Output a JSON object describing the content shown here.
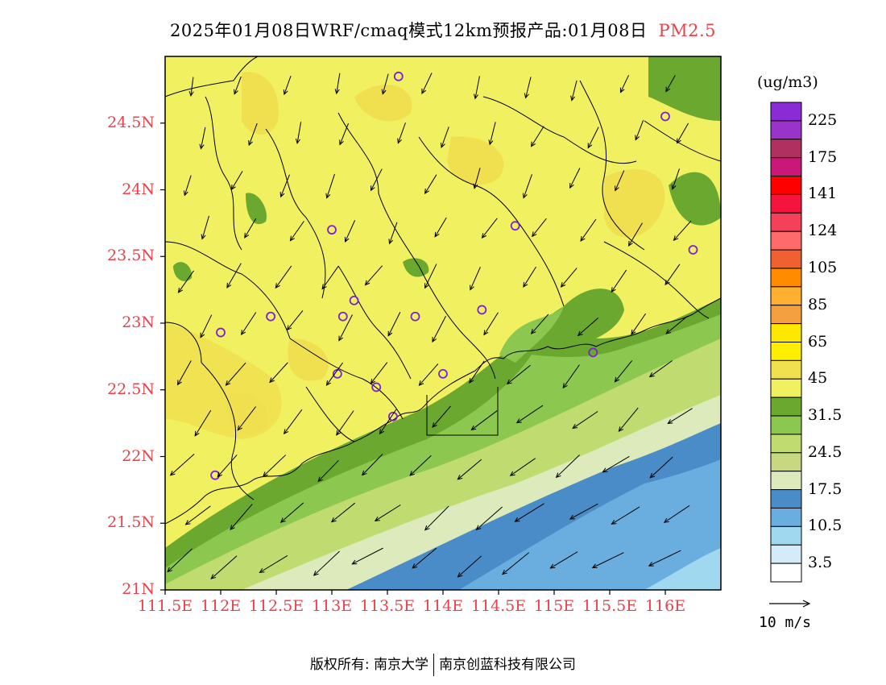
{
  "title": {
    "main": "2025年01月08日WRF/cmaq模式12km预报产品:01月08日",
    "pollutant": "PM2.5"
  },
  "colors": {
    "axis_label": "#e8424b",
    "frame": "#000000"
  },
  "map": {
    "lon_range": [
      111.5,
      116.5
    ],
    "lat_range": [
      21.0,
      25.0
    ],
    "lat_ticks": [
      {
        "value": 21.0,
        "label": "21N"
      },
      {
        "value": 21.5,
        "label": "21.5N"
      },
      {
        "value": 22.0,
        "label": "22N"
      },
      {
        "value": 22.5,
        "label": "22.5N"
      },
      {
        "value": 23.0,
        "label": "23N"
      },
      {
        "value": 23.5,
        "label": "23.5N"
      },
      {
        "value": 24.0,
        "label": "24N"
      },
      {
        "value": 24.5,
        "label": "24.5N"
      }
    ],
    "lon_ticks": [
      {
        "value": 111.5,
        "label": "111.5E"
      },
      {
        "value": 112.0,
        "label": "112E"
      },
      {
        "value": 112.5,
        "label": "112.5E"
      },
      {
        "value": 113.0,
        "label": "113E"
      },
      {
        "value": 113.5,
        "label": "113.5E"
      },
      {
        "value": 114.0,
        "label": "114E"
      },
      {
        "value": 114.5,
        "label": "114.5E"
      },
      {
        "value": 115.0,
        "label": "115E"
      },
      {
        "value": 115.5,
        "label": "115.5E"
      },
      {
        "value": 116.0,
        "label": "116E"
      }
    ],
    "stations": [
      {
        "lon": 113.6,
        "lat": 24.85
      },
      {
        "lon": 116.0,
        "lat": 24.55
      },
      {
        "lon": 114.65,
        "lat": 23.73
      },
      {
        "lon": 113.0,
        "lat": 23.7
      },
      {
        "lon": 116.25,
        "lat": 23.55
      },
      {
        "lon": 113.2,
        "lat": 23.17
      },
      {
        "lon": 112.45,
        "lat": 23.05
      },
      {
        "lon": 113.1,
        "lat": 23.05
      },
      {
        "lon": 113.75,
        "lat": 23.05
      },
      {
        "lon": 114.35,
        "lat": 23.1
      },
      {
        "lon": 112.0,
        "lat": 22.93
      },
      {
        "lon": 115.35,
        "lat": 22.78
      },
      {
        "lon": 113.05,
        "lat": 22.62
      },
      {
        "lon": 114.0,
        "lat": 22.62
      },
      {
        "lon": 113.4,
        "lat": 22.52
      },
      {
        "lon": 113.55,
        "lat": 22.3
      },
      {
        "lon": 111.95,
        "lat": 21.86
      }
    ]
  },
  "colorbar": {
    "units": "(ug/m3)",
    "bins_top_to_bottom": [
      "#8b2bd6",
      "#9a33c9",
      "#b03060",
      "#c8187a",
      "#ff0000",
      "#f5143c",
      "#f5405a",
      "#ff6a6a",
      "#f06030",
      "#ff8c00",
      "#ffb030",
      "#f5a040",
      "#ffe800",
      "#ffee00",
      "#f0e050",
      "#f0f060",
      "#6aa830",
      "#8cc850",
      "#c0dc70",
      "#c8d880",
      "#dceabc",
      "#4a8cc8",
      "#6aaee0",
      "#a0d8f0",
      "#d4ecf8",
      "#ffffff"
    ],
    "labels": [
      "225",
      "175",
      "141",
      "124",
      "105",
      "85",
      "65",
      "45",
      "31.5",
      "24.5",
      "17.5",
      "10.5",
      "3.5"
    ]
  },
  "wind_reference": {
    "label": "10 m/s"
  },
  "footer": {
    "left": "版权所有: 南京大学",
    "right": "南京创蓝科技有限公司"
  }
}
